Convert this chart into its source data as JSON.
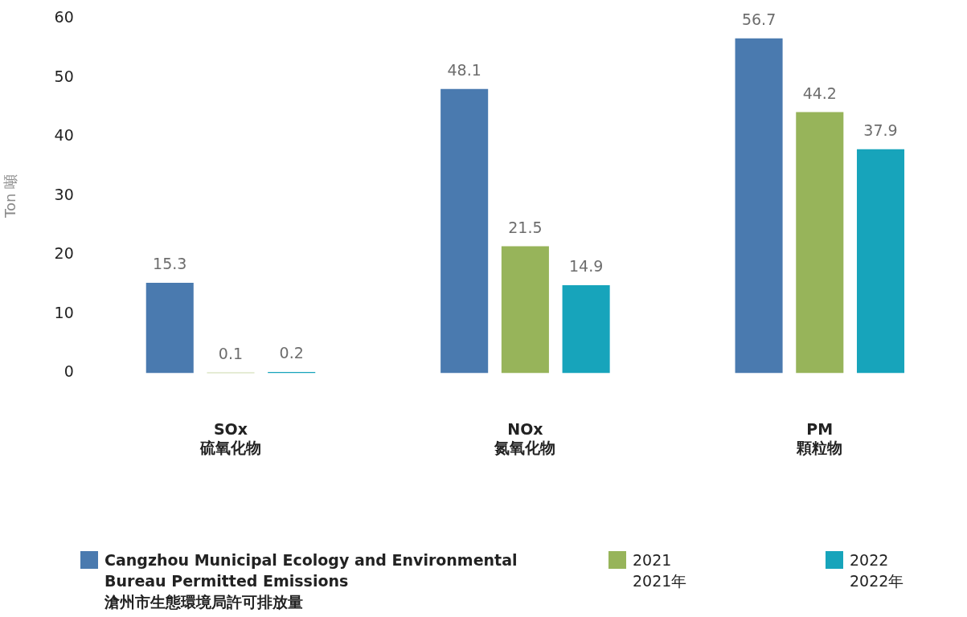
{
  "chart_data": {
    "type": "bar",
    "ylabel": "Ton 噸",
    "categories": [
      "SOx\n硫氧化物",
      "NOx\n氮氧化物",
      "PM\n顆粒物"
    ],
    "series": [
      {
        "name": "Cangzhou Municipal Ecology and Environmental Bureau Permitted Emissions\n滄州市生態環境局許可排放量",
        "color": "#4a7aaf",
        "values": [
          15.3,
          48.1,
          56.7
        ]
      },
      {
        "name": "2021\n2021年",
        "color": "#97b45a",
        "values": [
          0.1,
          21.5,
          44.2
        ]
      },
      {
        "name": "2022\n2022年",
        "color": "#17a4bb",
        "values": [
          0.2,
          14.9,
          37.9
        ]
      }
    ],
    "ylim": [
      0,
      60
    ],
    "yticks": [
      0,
      10,
      20,
      30,
      40,
      50,
      60
    ],
    "grid": false,
    "legend": "bottom",
    "data_labels": true
  }
}
